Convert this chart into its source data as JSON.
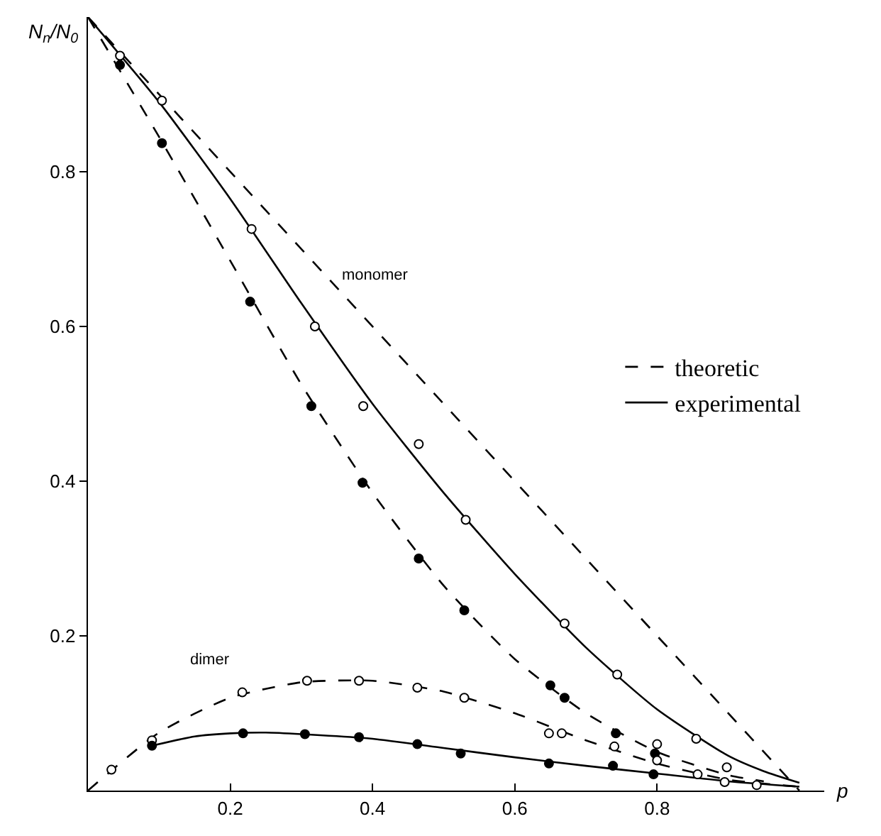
{
  "chart_data": {
    "type": "line",
    "xlabel": "p",
    "ylabel": "N$_{n}$/N$_{0}$",
    "xlim": [
      0,
      1.035
    ],
    "ylim": [
      0,
      1.0
    ],
    "xticks": [
      0.2,
      0.4,
      0.6,
      0.8
    ],
    "yticks": [
      0.2,
      0.4,
      0.6,
      0.8
    ],
    "legend": "right",
    "annotations": [
      "monomer",
      "dimer"
    ],
    "series": [
      {
        "name": "theoretic",
        "color": "#000000",
        "line_style": "dashed",
        "marker": "none",
        "x": [
          0,
          1
        ],
        "values": [
          1,
          0
        ]
      },
      {
        "name": "experimental",
        "color": "#000000",
        "line_style": "solid",
        "marker": "none",
        "x": [
          0,
          0.1,
          0.2,
          0.3,
          0.4,
          0.5,
          0.6,
          0.7,
          0.8,
          0.9,
          0.95,
          1.0
        ],
        "values": [
          1,
          0.89,
          0.765,
          0.63,
          0.5,
          0.385,
          0.28,
          0.185,
          0.105,
          0.045,
          0.025,
          0.01
        ]
      },
      {
        "color": "#000000",
        "line_style": "dashed",
        "marker": "none",
        "x": [
          0,
          0.1,
          0.2,
          0.3,
          0.4,
          0.5,
          0.6,
          0.7,
          0.8,
          0.9,
          0.95
        ],
        "values": [
          1,
          0.845,
          0.685,
          0.525,
          0.385,
          0.265,
          0.17,
          0.1,
          0.05,
          0.02,
          0.012
        ]
      },
      {
        "color": "#000000",
        "line_style": "dashed",
        "marker": "none",
        "x": [
          0,
          0.1,
          0.2,
          0.3,
          0.4,
          0.5,
          0.6,
          0.7,
          0.8,
          0.9,
          1.0
        ],
        "values": [
          0,
          0.075,
          0.12,
          0.14,
          0.142,
          0.128,
          0.1,
          0.065,
          0.035,
          0.014,
          0.005
        ]
      },
      {
        "color": "#000000",
        "line_style": "solid",
        "marker": "none",
        "x": [
          0.09,
          0.15,
          0.2,
          0.25,
          0.3,
          0.4,
          0.5,
          0.6,
          0.7,
          0.8,
          0.9,
          1.0
        ],
        "values": [
          0.058,
          0.07,
          0.074,
          0.075,
          0.073,
          0.067,
          0.055,
          0.043,
          0.032,
          0.022,
          0.012,
          0.005
        ]
      },
      {
        "type": "scatter",
        "color": "#ffffff",
        "marker": "circle",
        "x": [
          0.045,
          0.104,
          0.23,
          0.319,
          0.387,
          0.465,
          0.531,
          0.67,
          0.744,
          0.855
        ],
        "values": [
          0.95,
          0.892,
          0.726,
          0.6,
          0.497,
          0.448,
          0.35,
          0.216,
          0.15,
          0.067
        ]
      },
      {
        "type": "scatter",
        "color": "#000000",
        "marker": "circle",
        "x": [
          0.045,
          0.104,
          0.228,
          0.314,
          0.386,
          0.465,
          0.529,
          0.65,
          0.67,
          0.742,
          0.797
        ],
        "values": [
          0.938,
          0.837,
          0.632,
          0.497,
          0.398,
          0.3,
          0.233,
          0.136,
          0.12,
          0.074,
          0.048
        ]
      },
      {
        "type": "scatter",
        "color": "#ffffff",
        "marker": "circle",
        "x": [
          0.033,
          0.09,
          0.217,
          0.308,
          0.381,
          0.463,
          0.529,
          0.648,
          0.666,
          0.74,
          0.8,
          0.8,
          0.857,
          0.898,
          0.895,
          0.94
        ],
        "values": [
          0.027,
          0.065,
          0.127,
          0.142,
          0.142,
          0.133,
          0.12,
          0.074,
          0.074,
          0.057,
          0.06,
          0.039,
          0.021,
          0.03,
          0.011,
          0.007
        ]
      },
      {
        "type": "scatter",
        "color": "#000000",
        "marker": "circle",
        "x": [
          0.09,
          0.218,
          0.305,
          0.381,
          0.463,
          0.524,
          0.648,
          0.738,
          0.795
        ],
        "values": [
          0.058,
          0.074,
          0.073,
          0.069,
          0.06,
          0.048,
          0.035,
          0.032,
          0.021
        ]
      }
    ]
  }
}
